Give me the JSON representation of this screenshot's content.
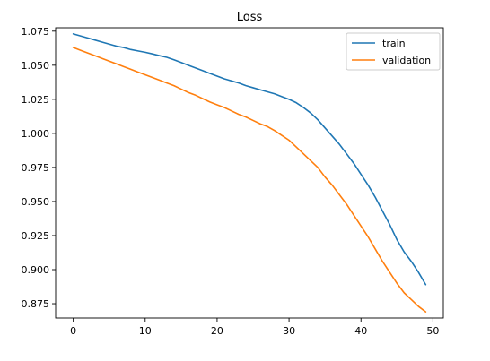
{
  "chart_data": {
    "type": "line",
    "title": "Loss",
    "xlabel": "",
    "ylabel": "",
    "xlim": [
      -2.45,
      51.45
    ],
    "ylim": [
      0.8645,
      1.0775
    ],
    "xticks": [
      0,
      10,
      20,
      30,
      40,
      50
    ],
    "yticks": [
      0.875,
      0.9,
      0.925,
      0.95,
      0.975,
      1.0,
      1.025,
      1.05,
      1.075
    ],
    "ytick_labels": [
      "0.875",
      "0.900",
      "0.925",
      "0.950",
      "0.975",
      "1.000",
      "1.025",
      "1.050",
      "1.075"
    ],
    "xtick_labels": [
      "0",
      "10",
      "20",
      "30",
      "40",
      "50"
    ],
    "grid": false,
    "legend_position": "top-right",
    "x": [
      0,
      1,
      2,
      3,
      4,
      5,
      6,
      7,
      8,
      9,
      10,
      11,
      12,
      13,
      14,
      15,
      16,
      17,
      18,
      19,
      20,
      21,
      22,
      23,
      24,
      25,
      26,
      27,
      28,
      29,
      30,
      31,
      32,
      33,
      34,
      35,
      36,
      37,
      38,
      39,
      40,
      41,
      42,
      43,
      44,
      45,
      46,
      47,
      48,
      49
    ],
    "series": [
      {
        "name": "train",
        "color": "#1f77b4",
        "values": [
          1.073,
          1.0715,
          1.07,
          1.0685,
          1.067,
          1.0655,
          1.064,
          1.063,
          1.0615,
          1.0605,
          1.0595,
          1.0583,
          1.057,
          1.0558,
          1.054,
          1.052,
          1.05,
          1.048,
          1.046,
          1.044,
          1.042,
          1.04,
          1.0385,
          1.037,
          1.035,
          1.0335,
          1.032,
          1.0305,
          1.029,
          1.027,
          1.025,
          1.0225,
          1.019,
          1.015,
          1.01,
          1.004,
          0.998,
          0.992,
          0.985,
          0.978,
          0.97,
          0.962,
          0.953,
          0.943,
          0.933,
          0.922,
          0.913,
          0.906,
          0.898,
          0.889
        ]
      },
      {
        "name": "validation",
        "color": "#ff7f0e",
        "values": [
          1.063,
          1.061,
          1.059,
          1.057,
          1.055,
          1.053,
          1.051,
          1.049,
          1.047,
          1.045,
          1.043,
          1.041,
          1.039,
          1.037,
          1.035,
          1.0325,
          1.03,
          1.028,
          1.0255,
          1.023,
          1.021,
          1.019,
          1.0165,
          1.014,
          1.012,
          1.0095,
          1.007,
          1.005,
          1.002,
          0.9985,
          0.995,
          0.99,
          0.985,
          0.98,
          0.975,
          0.968,
          0.962,
          0.955,
          0.948,
          0.94,
          0.932,
          0.924,
          0.915,
          0.906,
          0.898,
          0.89,
          0.883,
          0.878,
          0.873,
          0.869
        ]
      }
    ]
  }
}
